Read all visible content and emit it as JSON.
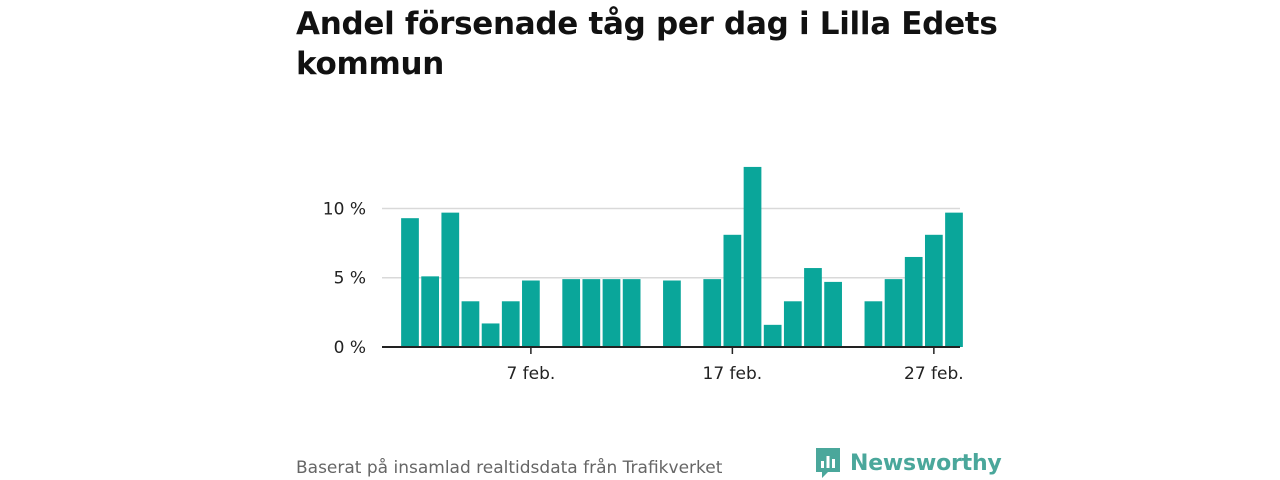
{
  "title": "Andel försenade tåg per dag i Lilla Edets kommun",
  "footer": {
    "source_text": "Baserat på insamlad realtidsdata från Trafikverket",
    "brand_name": "Newsworthy"
  },
  "colors": {
    "bar": "#0aa69a",
    "grid": "#d9d9d9",
    "axis": "#222222",
    "brand": "#4aa79b"
  },
  "chart_data": {
    "type": "bar",
    "x": [
      "1 feb.",
      "2 feb.",
      "3 feb.",
      "4 feb.",
      "5 feb.",
      "6 feb.",
      "7 feb.",
      "8 feb.",
      "9 feb.",
      "10 feb.",
      "11 feb.",
      "12 feb.",
      "13 feb.",
      "14 feb.",
      "15 feb.",
      "16 feb.",
      "17 feb.",
      "18 feb.",
      "19 feb.",
      "20 feb.",
      "21 feb.",
      "22 feb.",
      "23 feb.",
      "24 feb.",
      "25 feb.",
      "26 feb.",
      "27 feb.",
      "28 feb."
    ],
    "values": [
      9.3,
      5.1,
      9.7,
      3.3,
      1.7,
      3.3,
      4.8,
      null,
      4.9,
      4.9,
      4.9,
      4.9,
      null,
      4.8,
      null,
      4.9,
      8.1,
      13.0,
      1.6,
      3.3,
      5.7,
      4.7,
      null,
      3.3,
      4.9,
      6.5,
      8.1,
      9.7
    ],
    "unit": "%",
    "ylim": [
      0,
      13.5
    ],
    "yticks": [
      {
        "value": 0,
        "label": "0 %"
      },
      {
        "value": 5,
        "label": "5 %"
      },
      {
        "value": 10,
        "label": "10 %"
      }
    ],
    "xticks": [
      {
        "value": "7 feb.",
        "label": "7 feb."
      },
      {
        "value": "17 feb.",
        "label": "17 feb."
      },
      {
        "value": "27 feb.",
        "label": "27 feb."
      }
    ],
    "grid": true,
    "legend": "none"
  }
}
